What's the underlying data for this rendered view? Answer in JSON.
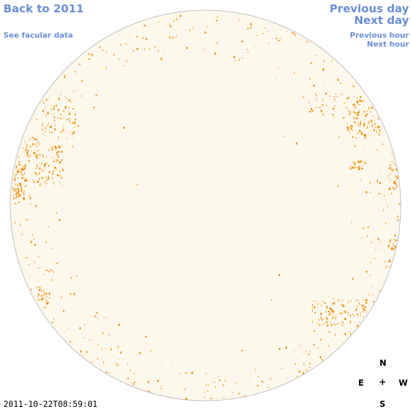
{
  "nav": {
    "back": "Back to 2011",
    "facular": "See facular data",
    "prev_day": "Previous day",
    "next_day": "Next day",
    "prev_hour": "Previous hour",
    "next_hour": "Next hour"
  },
  "compass": {
    "north": "N",
    "east": "E",
    "center": "+",
    "west": "W",
    "south": "S"
  },
  "timestamp": "2011-10-22T08:59:01",
  "colors": {
    "disk_fill": "#fdf8ec",
    "disk_edge": "#bdbdbd",
    "facula": "#f08c00",
    "link": "#6b8fd6"
  }
}
